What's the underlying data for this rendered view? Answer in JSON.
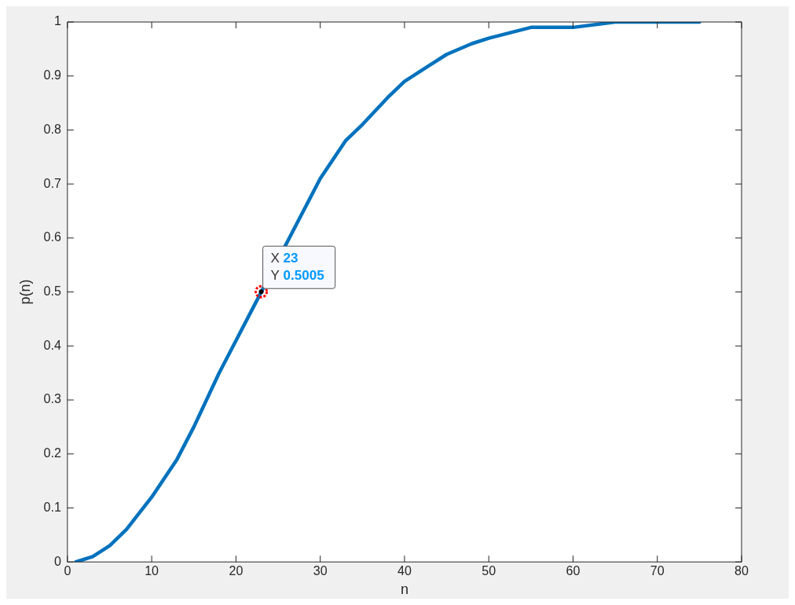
{
  "chart_data": {
    "type": "line",
    "xlabel": "n",
    "ylabel": "p(n)",
    "x": [
      1,
      3,
      5,
      7,
      10,
      13,
      15,
      18,
      20,
      23,
      28,
      30,
      33,
      35,
      38,
      40,
      43,
      45,
      48,
      50,
      55,
      60,
      65,
      70,
      75
    ],
    "series": [
      {
        "color": "#0072bd",
        "values": [
          0,
          0.01,
          0.03,
          0.06,
          0.12,
          0.19,
          0.25,
          0.35,
          0.41,
          0.5,
          0.65,
          0.71,
          0.78,
          0.81,
          0.86,
          0.89,
          0.92,
          0.94,
          0.96,
          0.97,
          0.99,
          0.99,
          1,
          1,
          1
        ]
      }
    ],
    "xlim": [
      0,
      80
    ],
    "xticks": [
      0,
      10,
      20,
      30,
      40,
      50,
      60,
      70,
      80
    ],
    "ylim": [
      0,
      1
    ],
    "yticks": [
      0,
      0.1,
      0.2,
      0.3,
      0.4,
      0.5,
      0.6,
      0.7,
      0.8,
      0.9,
      1
    ],
    "grid": false,
    "legend": false,
    "marker": "none",
    "line_style": "solid",
    "annotations": [
      {
        "text": "X 23\nY 0.5005",
        "x": 23,
        "y": 0.5005
      }
    ]
  }
}
